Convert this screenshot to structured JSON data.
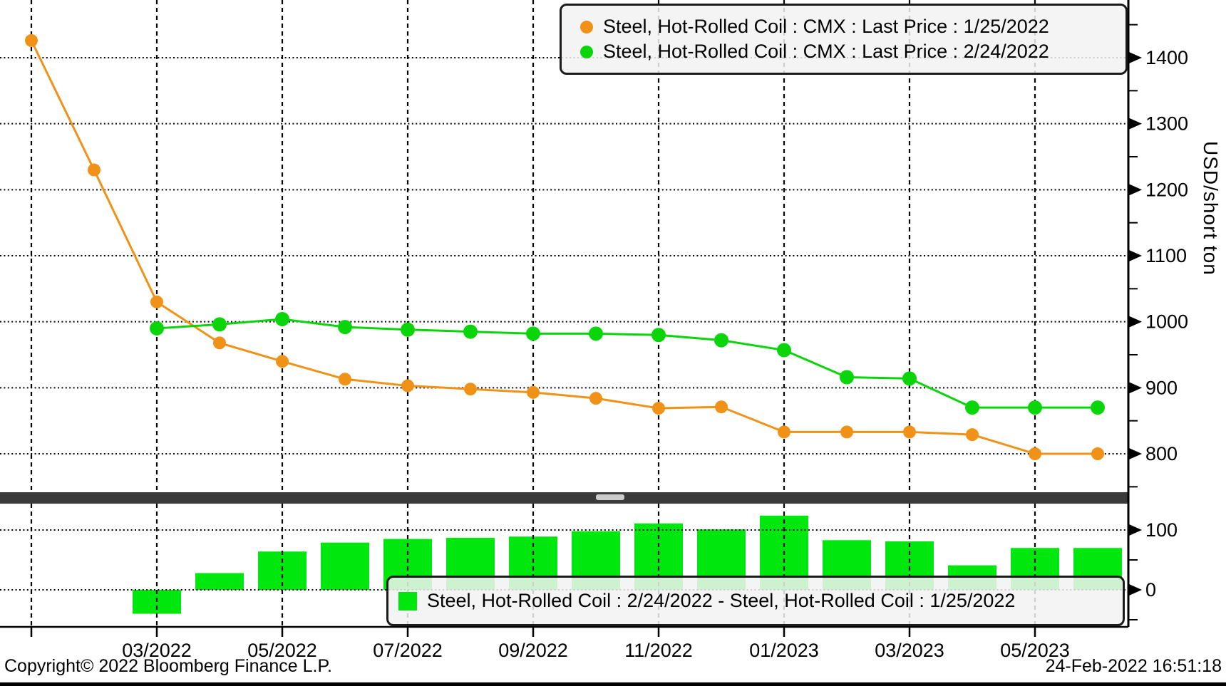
{
  "legend_top": {
    "items": [
      {
        "label": "Steel, Hot-Rolled Coil : CMX : Last Price : 1/25/2022",
        "marker": "circle-icon",
        "color": "#EF9217"
      },
      {
        "label": "Steel, Hot-Rolled Coil : CMX : Last Price : 2/24/2022",
        "marker": "circle-icon",
        "color": "#0AD40A"
      }
    ]
  },
  "legend_bottom": {
    "items": [
      {
        "label": "Steel, Hot-Rolled Coil : 2/24/2022 - Steel, Hot-Rolled Coil : 1/25/2022",
        "marker": "square-icon",
        "color": "#00E70E"
      }
    ]
  },
  "y_axis": {
    "label": "USD/short ton",
    "main_tick_labels": [
      "1400",
      "1300",
      "1200",
      "1100",
      "1000",
      "900",
      "800"
    ],
    "lower_tick_labels": [
      "100",
      "0"
    ]
  },
  "x_axis": {
    "tick_labels": [
      "03/2022",
      "05/2022",
      "07/2022",
      "09/2022",
      "11/2022",
      "01/2023",
      "03/2023",
      "05/2023"
    ],
    "unlabeled_tick_month": "01/2022"
  },
  "footer": {
    "copyright": "Copyright© 2022 Bloomberg Finance L.P.",
    "timestamp": "24-Feb-2022 16:51:18"
  },
  "colors": {
    "series_1_orange": "#EF9217",
    "series_2_green": "#0AD40A",
    "spread_bar_green": "#00E70E",
    "separator": "#3A3A3A",
    "legend_background": "#F2F2F2",
    "grid": "#050505"
  },
  "chart_data": [
    {
      "type": "line",
      "title": "Steel Hot-Rolled Coil futures curves",
      "x": [
        "01/2022",
        "02/2022",
        "03/2022",
        "04/2022",
        "05/2022",
        "06/2022",
        "07/2022",
        "08/2022",
        "09/2022",
        "10/2022",
        "11/2022",
        "12/2022",
        "01/2023",
        "02/2023",
        "03/2023",
        "04/2023",
        "05/2023",
        "06/2023"
      ],
      "series": [
        {
          "name": "Steel, Hot-Rolled Coil : CMX : Last Price : 1/25/2022",
          "color": "#EF9217",
          "values": [
            1426,
            1230,
            1030,
            968,
            940,
            913,
            903,
            898,
            893,
            884,
            869,
            871,
            833,
            833,
            833,
            829,
            800,
            800
          ]
        },
        {
          "name": "Steel, Hot-Rolled Coil : CMX : Last Price : 2/24/2022",
          "color": "#0AD40A",
          "values": [
            null,
            null,
            990,
            996,
            1004,
            992,
            988,
            985,
            982,
            982,
            980,
            972,
            957,
            916,
            914,
            870,
            870,
            870
          ]
        }
      ],
      "ylabel": "USD/short ton",
      "ylim": [
        741,
        1484
      ],
      "yticks": [
        1400,
        1300,
        1200,
        1100,
        1000,
        900,
        800
      ],
      "grid": true,
      "legend_position": "top-right"
    },
    {
      "type": "bar",
      "title": "Spread 2/24/2022 minus 1/25/2022",
      "x": [
        "01/2022",
        "02/2022",
        "03/2022",
        "04/2022",
        "05/2022",
        "06/2022",
        "07/2022",
        "08/2022",
        "09/2022",
        "10/2022",
        "11/2022",
        "12/2022",
        "01/2023",
        "02/2023",
        "03/2023",
        "04/2023",
        "05/2023",
        "06/2023"
      ],
      "series": [
        {
          "name": "Steel, Hot-Rolled Coil : 2/24/2022 - Steel, Hot-Rolled Coil : 1/25/2022",
          "color": "#00E70E",
          "values": [
            null,
            null,
            -40,
            28,
            64,
            79,
            85,
            87,
            89,
            98,
            111,
            101,
            124,
            83,
            81,
            41,
            70,
            70
          ]
        }
      ],
      "ylim": [
        -61,
        146
      ],
      "yticks": [
        100,
        0
      ],
      "grid": true,
      "legend_position": "bottom"
    }
  ]
}
